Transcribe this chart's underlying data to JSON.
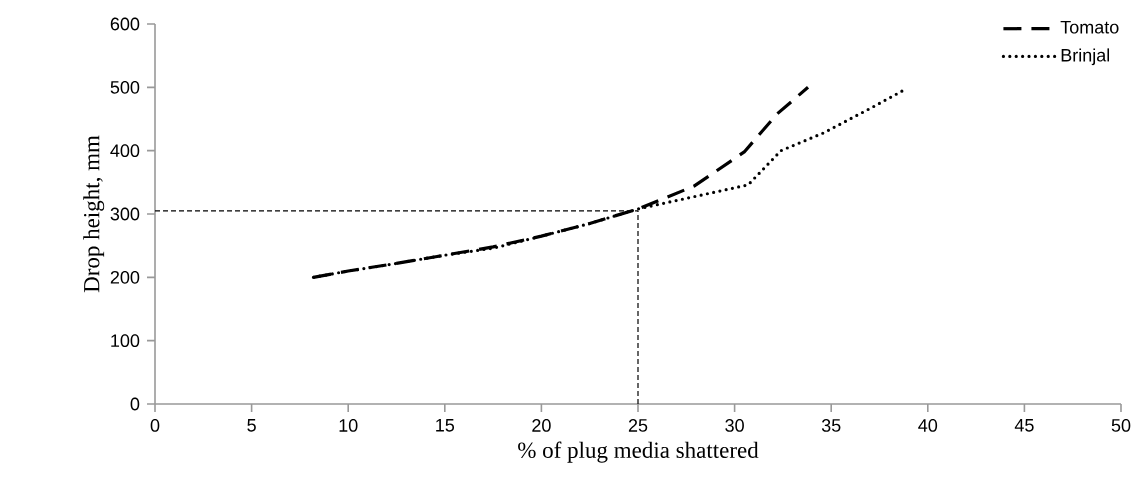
{
  "chart_data": {
    "type": "line",
    "xlabel": "% of plug media shattered",
    "ylabel": "Drop height, mm",
    "xlim": [
      0,
      50
    ],
    "xticks": [
      0,
      5,
      10,
      15,
      20,
      25,
      30,
      35,
      40,
      45,
      50
    ],
    "ylim": [
      0,
      600
    ],
    "yticks": [
      0,
      100,
      200,
      300,
      400,
      500,
      600
    ],
    "legend": "top right",
    "marker": "none",
    "series": [
      {
        "name": "Tomato",
        "color": "#000000",
        "line_style": "dashed",
        "x": [
          8.2,
          10,
          12.5,
          15,
          17.5,
          20,
          22.5,
          25,
          27.9,
          30.5,
          32.2,
          33.8
        ],
        "values": [
          200,
          210,
          222,
          235,
          248,
          265,
          285,
          308,
          344,
          398,
          458,
          500
        ]
      },
      {
        "name": "Brinjal",
        "color": "#000000",
        "line_style": "dotted",
        "x": [
          8.2,
          10,
          12.5,
          15,
          17.5,
          20,
          22.5,
          25,
          28.3,
          30.7,
          32.4,
          34.6,
          37.1,
          38.9
        ],
        "values": [
          200,
          210,
          222,
          235,
          246,
          265,
          285,
          308,
          330,
          346,
          400,
          428,
          468,
          498
        ]
      }
    ],
    "ref_lines": [
      {
        "axis": "y",
        "value": 305,
        "line_style": "dashed",
        "color": "#000000"
      },
      {
        "axis": "x",
        "value": 25,
        "line_style": "dashed",
        "color": "#000000"
      }
    ]
  }
}
